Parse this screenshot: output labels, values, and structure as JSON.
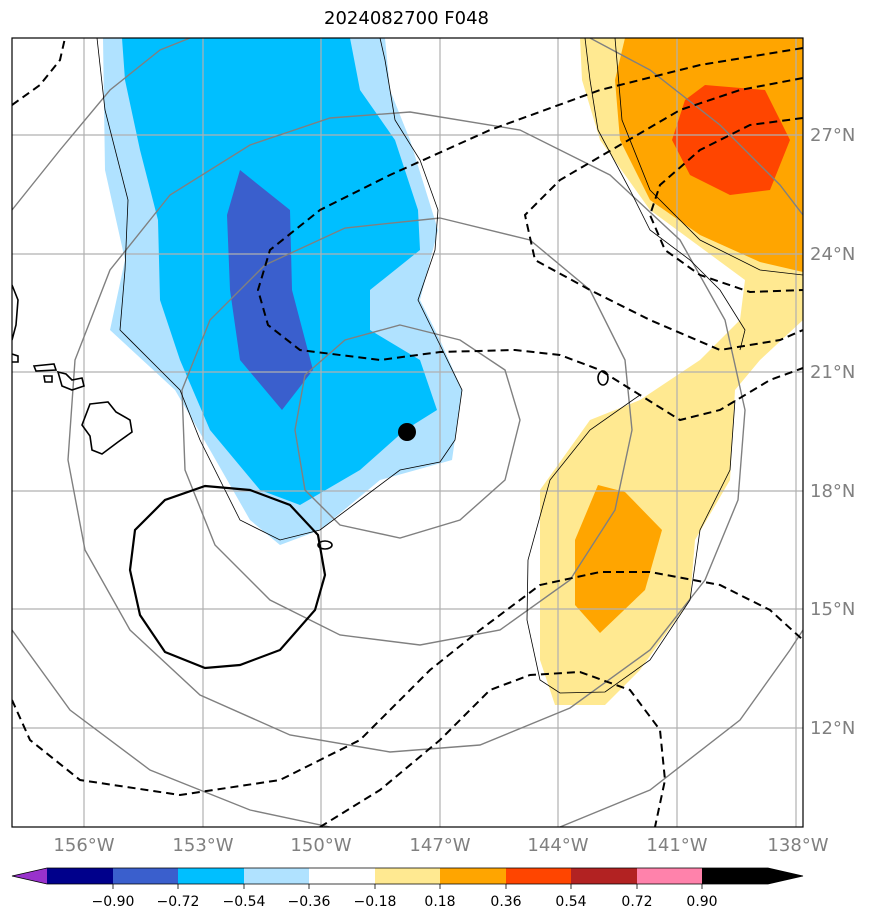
{
  "title": "2024082700 F048",
  "map": {
    "lon_labels": [
      "156°W",
      "153°W",
      "150°W",
      "147°W",
      "144°W",
      "141°W",
      "138°W"
    ],
    "lat_labels": [
      "27°N",
      "24°N",
      "21°N",
      "18°N",
      "15°N",
      "12°N"
    ],
    "storm_center": {
      "lon": "148°W",
      "lat": "19.4°N"
    }
  },
  "colorbar": {
    "ticks": [
      "−0.90",
      "−0.72",
      "−0.54",
      "−0.36",
      "−0.18",
      "0.18",
      "0.36",
      "0.54",
      "0.72",
      "0.90"
    ],
    "colors": [
      "#9932cc",
      "#00008b",
      "#3a5fcd",
      "#00bfff",
      "#b0e2ff",
      "#ffffff",
      "#ffe991",
      "#ffa500",
      "#ff4500",
      "#b22222",
      "#ff82ab"
    ]
  }
}
